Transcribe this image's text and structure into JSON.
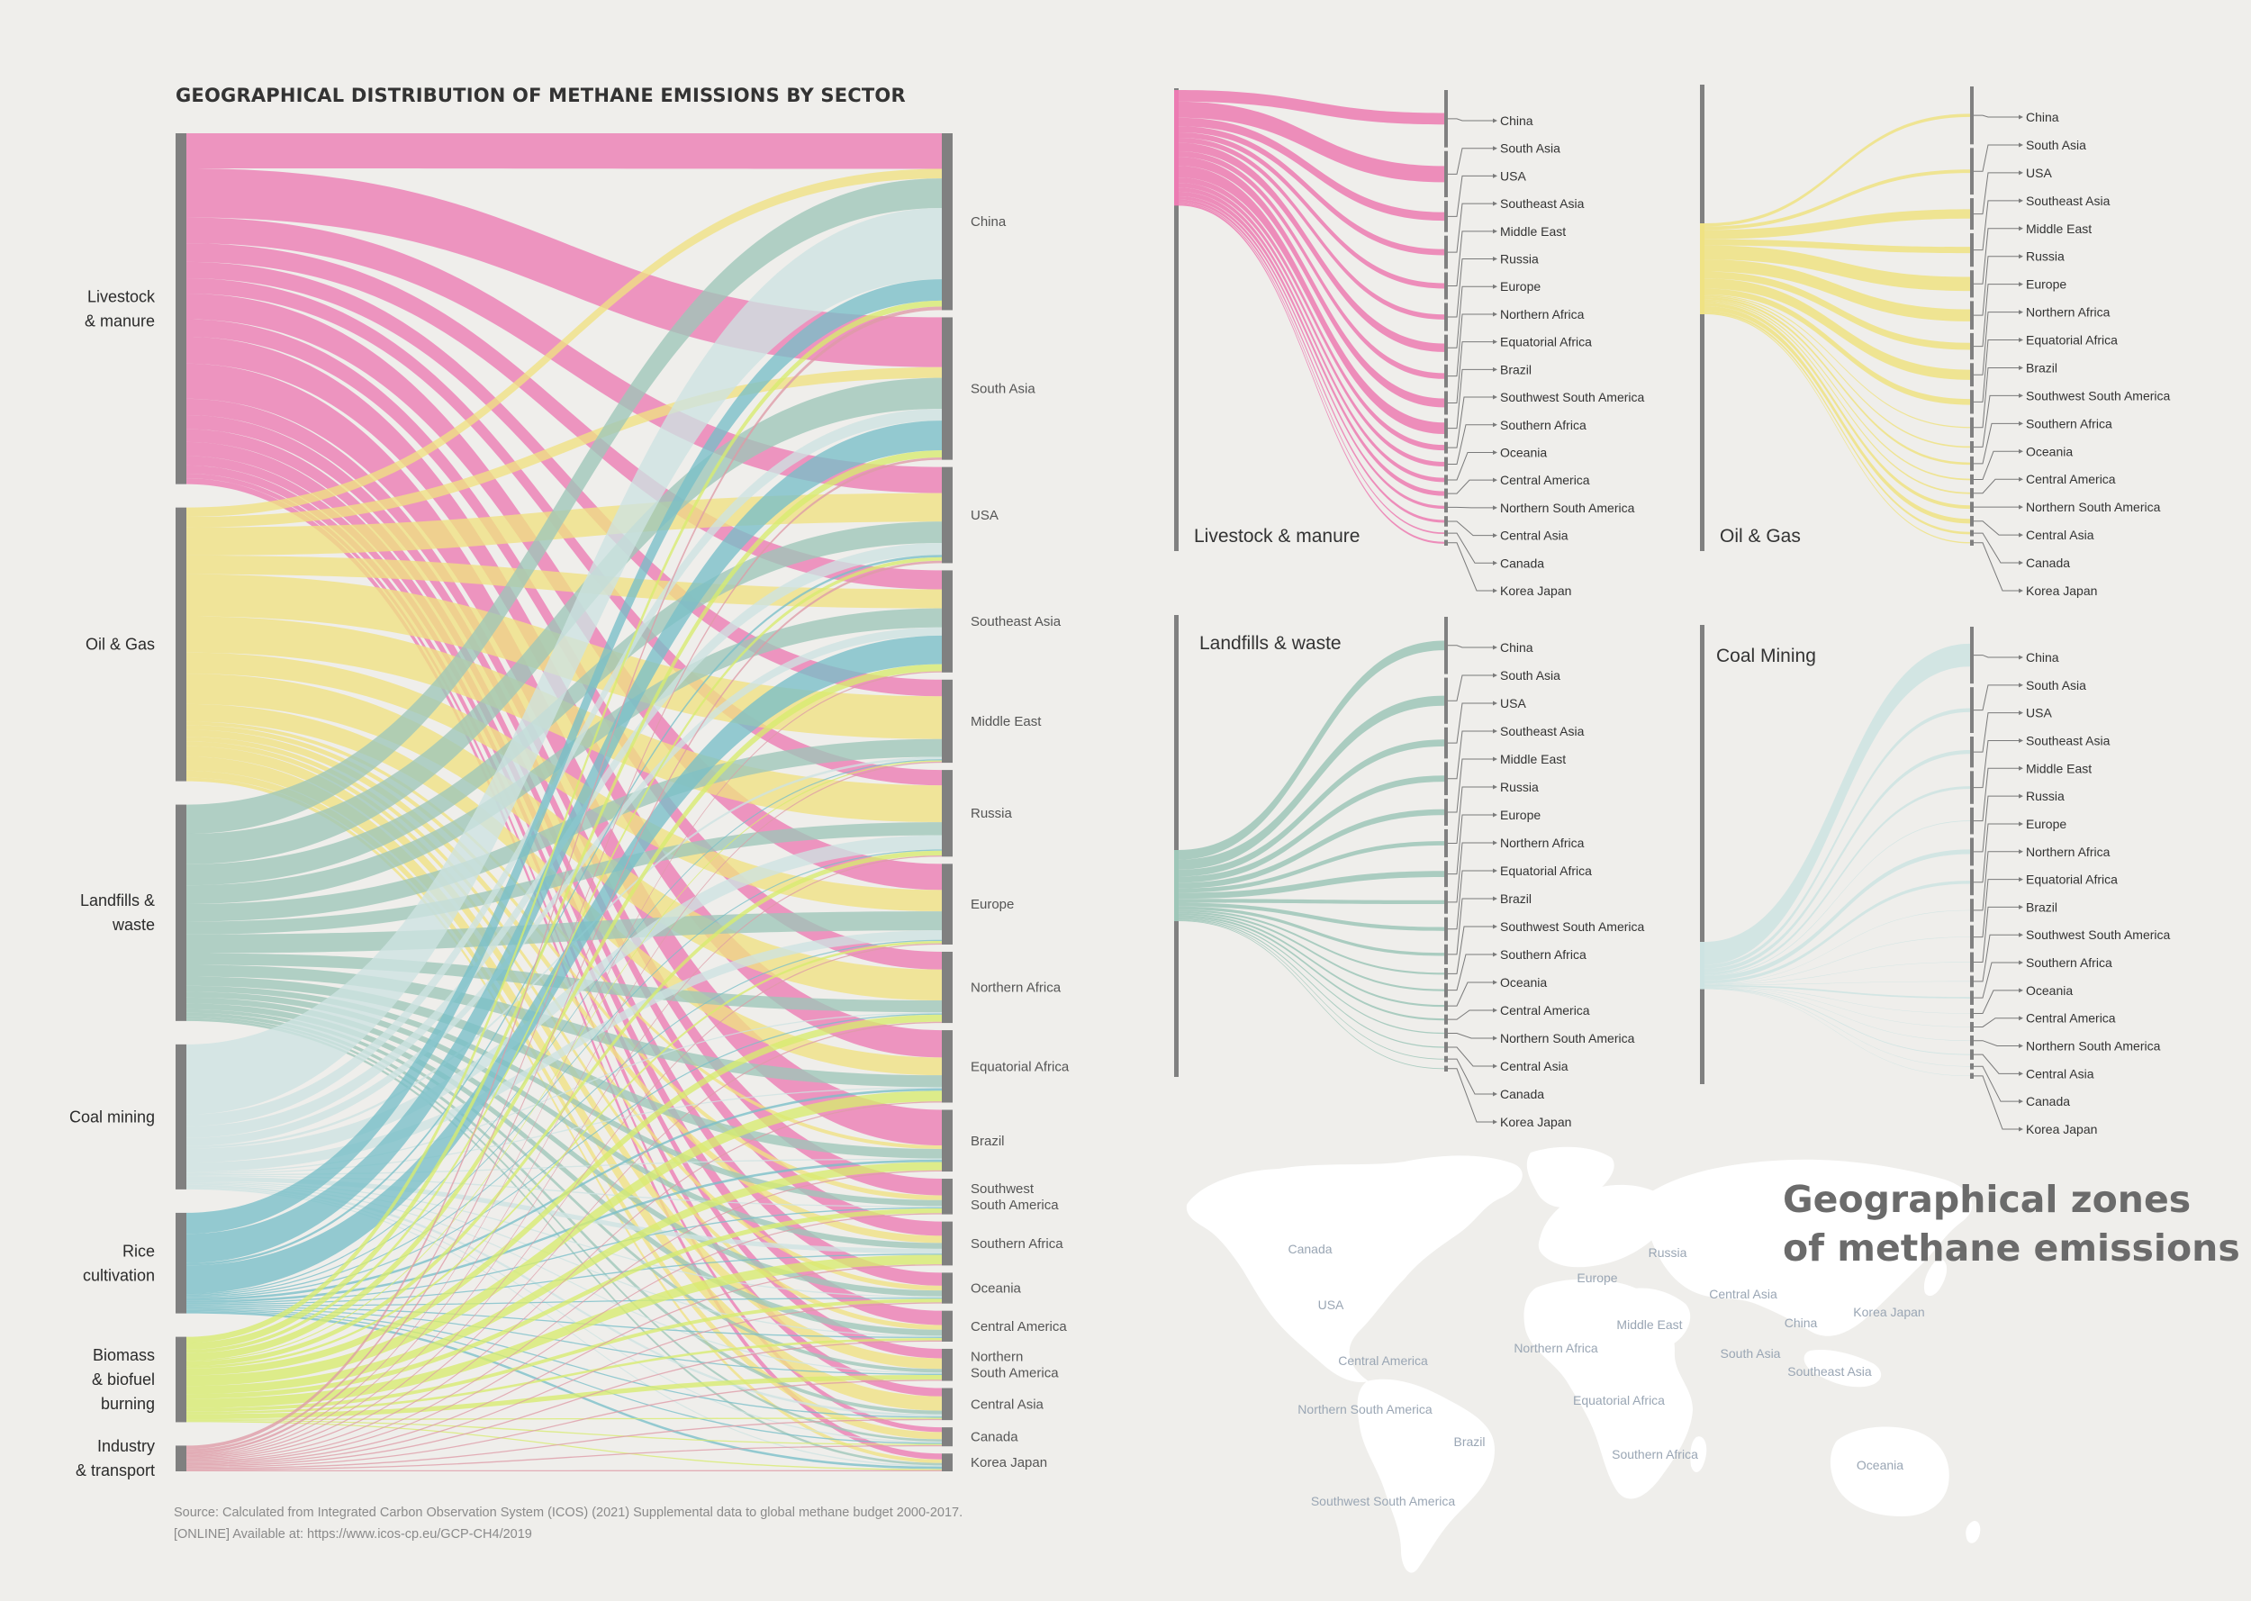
{
  "title": "GEOGRAPHICAL DISTRIBUTION OF METHANE EMISSIONS BY SECTOR",
  "source": {
    "line1": "Source: Calculated from Integrated Carbon Observation System (ICOS) (2021) Supplemental data to global methane budget 2000-2017.",
    "line2": "[ONLINE] Available at: https://www.icos-cp.eu/GCP-CH4/2019"
  },
  "colors": {
    "livestock": "#ec7bb2",
    "oil": "#efe282",
    "landfills": "#9ec6b8",
    "coal": "#cde3e2",
    "rice": "#79bfc8",
    "biomass": "#d7ec6e",
    "industry": "#de9ba6",
    "bar": "#808080"
  },
  "sectors": [
    {
      "key": "livestock",
      "label": "Livestock\n& manure",
      "value": 30,
      "color": "#ec7bb2"
    },
    {
      "key": "oil",
      "label": "Oil & Gas",
      "value": 22,
      "color": "#efe282"
    },
    {
      "key": "landfills",
      "label": "Landfills &\nwaste",
      "value": 18,
      "color": "#9ec6b8"
    },
    {
      "key": "coal",
      "label": "Coal mining",
      "value": 12,
      "color": "#cde3e2"
    },
    {
      "key": "rice",
      "label": "Rice\ncultivation",
      "value": 8,
      "color": "#79bfc8"
    },
    {
      "key": "biomass",
      "label": "Biomass\n& biofuel\nburning",
      "value": 8,
      "color": "#d7ec6e"
    },
    {
      "key": "industry",
      "label": "Industry\n& transport",
      "value": 2,
      "color": "#de9ba6"
    }
  ],
  "regions": [
    {
      "key": "china",
      "label": "China"
    },
    {
      "key": "southasia",
      "label": "South Asia"
    },
    {
      "key": "usa",
      "label": "USA"
    },
    {
      "key": "seasia",
      "label": "Southeast Asia"
    },
    {
      "key": "mideast",
      "label": "Middle East"
    },
    {
      "key": "russia",
      "label": "Russia"
    },
    {
      "key": "europe",
      "label": "Europe"
    },
    {
      "key": "nafrica",
      "label": "Northern Africa"
    },
    {
      "key": "eqafrica",
      "label": "Equatorial Africa"
    },
    {
      "key": "brazil",
      "label": "Brazil"
    },
    {
      "key": "swsa",
      "label": "Southwest\nSouth America"
    },
    {
      "key": "safrica",
      "label": "Southern Africa"
    },
    {
      "key": "oceania",
      "label": "Oceania"
    },
    {
      "key": "camerica",
      "label": "Central America"
    },
    {
      "key": "nsa",
      "label": "Northern\nSouth America"
    },
    {
      "key": "casia",
      "label": "Central Asia"
    },
    {
      "key": "canada",
      "label": "Canada"
    },
    {
      "key": "korea",
      "label": "Korea Japan"
    }
  ],
  "flows": {
    "livestock": [
      3.0,
      4.2,
      2.2,
      1.6,
      1.4,
      1.3,
      2.2,
      1.5,
      2.3,
      3.0,
      1.4,
      1.2,
      1.1,
      1.2,
      0.8,
      0.7,
      0.4,
      0.5
    ],
    "oil": [
      0.8,
      0.9,
      2.4,
      1.6,
      3.6,
      3.1,
      1.8,
      2.6,
      1.5,
      0.3,
      0.4,
      0.6,
      0.4,
      0.4,
      0.9,
      1.2,
      0.6,
      0.3
    ],
    "landfills": [
      2.5,
      2.6,
      1.8,
      1.6,
      1.5,
      1.1,
      1.6,
      1.0,
      1.0,
      0.8,
      0.5,
      0.5,
      0.5,
      0.5,
      0.3,
      0.3,
      0.2,
      0.2
    ],
    "coal": [
      6.0,
      1.0,
      1.0,
      0.7,
      0.2,
      1.2,
      0.8,
      0.1,
      0.1,
      0.1,
      0.1,
      0.4,
      0.1,
      0.1,
      0.1,
      0.2,
      0.1,
      0.1
    ],
    "rice": [
      1.8,
      2.5,
      0.2,
      2.4,
      0.1,
      0.1,
      0.1,
      0.1,
      0.2,
      0.2,
      0.1,
      0.1,
      0.1,
      0.1,
      0.1,
      0.1,
      0.1,
      0.2
    ],
    "biomass": [
      0.5,
      0.6,
      0.3,
      0.6,
      0.1,
      0.4,
      0.2,
      0.6,
      0.9,
      0.7,
      0.4,
      0.8,
      0.3,
      0.2,
      0.4,
      0.1,
      0.1,
      0.1
    ],
    "industry": [
      0.3,
      0.2,
      0.2,
      0.1,
      0.1,
      0.1,
      0.1,
      0.1,
      0.1,
      0.1,
      0.1,
      0.1,
      0.1,
      0.1,
      0.1,
      0.1,
      0.1,
      0.1
    ]
  },
  "small_multiples": [
    {
      "key": "livestock",
      "label": "Livestock & manure"
    },
    {
      "key": "oil",
      "label": "Oil & Gas"
    },
    {
      "key": "landfills",
      "label": "Landfills & waste"
    },
    {
      "key": "coal",
      "label": "Coal Mining"
    }
  ],
  "small_region_labels": [
    "China",
    "South Asia",
    "USA",
    "Southeast Asia",
    "Middle East",
    "Russia",
    "Europe",
    "Northern Africa",
    "Equatorial Africa",
    "Brazil",
    "Southwest South America",
    "Southern Africa",
    "Oceania",
    "Central America",
    "Northern South America",
    "Central Asia",
    "Canada",
    "Korea Japan"
  ],
  "map": {
    "title_line1": "Geographical zones",
    "title_line2": "of methane emissions",
    "labels": [
      {
        "key": "canada",
        "text": "Canada"
      },
      {
        "key": "usa",
        "text": "USA"
      },
      {
        "key": "camerica",
        "text": "Central America"
      },
      {
        "key": "nsa",
        "text": "Northern South America"
      },
      {
        "key": "brazil",
        "text": "Brazil"
      },
      {
        "key": "swsa",
        "text": "Southwest South America"
      },
      {
        "key": "europe",
        "text": "Europe"
      },
      {
        "key": "russia",
        "text": "Russia"
      },
      {
        "key": "casia",
        "text": "Central Asia"
      },
      {
        "key": "mideast",
        "text": "Middle East"
      },
      {
        "key": "nafrica",
        "text": "Northern Africa"
      },
      {
        "key": "eqafrica",
        "text": "Equatorial Africa"
      },
      {
        "key": "safrica",
        "text": "Southern Africa"
      },
      {
        "key": "china",
        "text": "China"
      },
      {
        "key": "southasia",
        "text": "South Asia"
      },
      {
        "key": "korea",
        "text": "Korea Japan"
      },
      {
        "key": "seasia",
        "text": "Southeast Asia"
      },
      {
        "key": "oceania",
        "text": "Oceania"
      }
    ]
  }
}
